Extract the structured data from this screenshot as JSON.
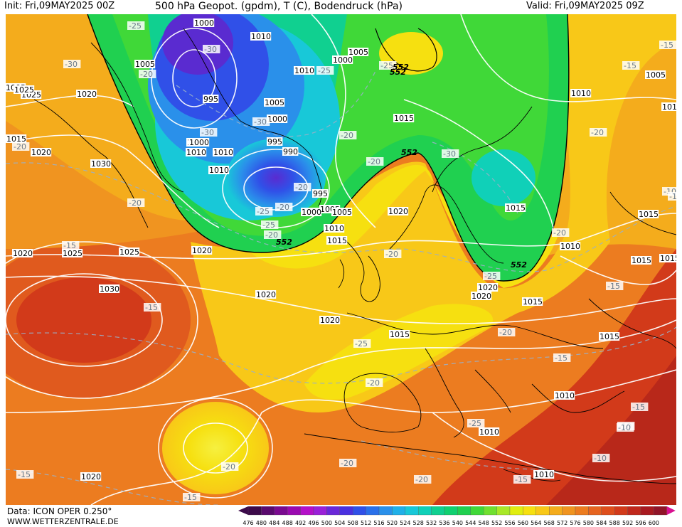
{
  "header": {
    "init": "Init: Fri,09MAY2025 00Z",
    "title": "500 hPa Geopot. (gpdm), T (C), Bodendruck (hPa)",
    "valid": "Valid: Fri,09MAY2025 09Z"
  },
  "footer": {
    "data_source": "Data: ICON OPER 0.250°",
    "website": "WWW.WETTERZENTRALE.DE"
  },
  "colors": {
    "ocean_low": "#00c850",
    "purple_core": "#5a2bd0",
    "blue": "#2f6fe8",
    "cyan": "#1bd0c8",
    "green": "#1fcf4a",
    "yellow": "#f3ea12",
    "gold": "#f7c81a",
    "orange": "#f0a020",
    "dark_orange": "#e67820",
    "red": "#d84a18",
    "dark_red": "#b8281a"
  },
  "legend": {
    "values": [
      "476",
      "480",
      "484",
      "488",
      "492",
      "496",
      "500",
      "504",
      "508",
      "512",
      "516",
      "520",
      "524",
      "528",
      "532",
      "536",
      "540",
      "544",
      "548",
      "552",
      "556",
      "560",
      "564",
      "568",
      "572",
      "576",
      "580",
      "584",
      "588",
      "592",
      "596",
      "600"
    ],
    "colors": [
      "#3c0a4a",
      "#5a0a6e",
      "#7a0a90",
      "#9a0ab0",
      "#b410c8",
      "#9a20d8",
      "#6a28d8",
      "#4a30e0",
      "#3050e8",
      "#2a70ea",
      "#2a90ea",
      "#20b0e8",
      "#18c8d8",
      "#10d0b8",
      "#10d090",
      "#10d070",
      "#20d050",
      "#40d838",
      "#70e030",
      "#a8e828",
      "#e0ee10",
      "#f6e010",
      "#f8c818",
      "#f4ac1c",
      "#f09420",
      "#ec7c20",
      "#e66420",
      "#de4e1c",
      "#d23a1a",
      "#c0281c",
      "#a81a20",
      "#901428"
    ]
  },
  "map": {
    "isobar_labels": [
      "1000",
      "1010",
      "1005",
      "1000",
      "1010",
      "1005",
      "1025",
      "1020",
      "995",
      "1005",
      "1010",
      "1015",
      "1005",
      "1000",
      "1010",
      "1020",
      "1030",
      "1000",
      "995",
      "1005",
      "990",
      "1010",
      "995",
      "1000",
      "1005",
      "1010",
      "1015",
      "1005",
      "1020",
      "1015",
      "1010",
      "1015",
      "1020",
      "1025",
      "1025",
      "1020",
      "1020",
      "1030",
      "1020",
      "1015",
      "1015",
      "1025",
      "1015",
      "1020",
      "1015",
      "1015",
      "1010",
      "1015",
      "1010",
      "1010",
      "1020",
      "1010",
      "1010",
      "1005",
      "1020"
    ],
    "temp_labels": [
      "-25",
      "-30",
      "-20",
      "-30",
      "-30",
      "-25",
      "-20",
      "-20",
      "-20",
      "-20",
      "-30",
      "-25",
      "-25",
      "-25",
      "-20",
      "-30",
      "-20",
      "-20",
      "-15",
      "-20",
      "-25",
      "-15",
      "-20",
      "-25",
      "-20",
      "-25",
      "-20",
      "-20",
      "-15",
      "-15",
      "-15",
      "-20",
      "-15",
      "-20",
      "-20",
      "-15",
      "-15",
      "-10",
      "-10",
      "-15",
      "-10",
      "-10",
      "-15",
      "-15"
    ],
    "geopot_labels": [
      "552",
      "552",
      "552",
      "552",
      "552"
    ]
  }
}
